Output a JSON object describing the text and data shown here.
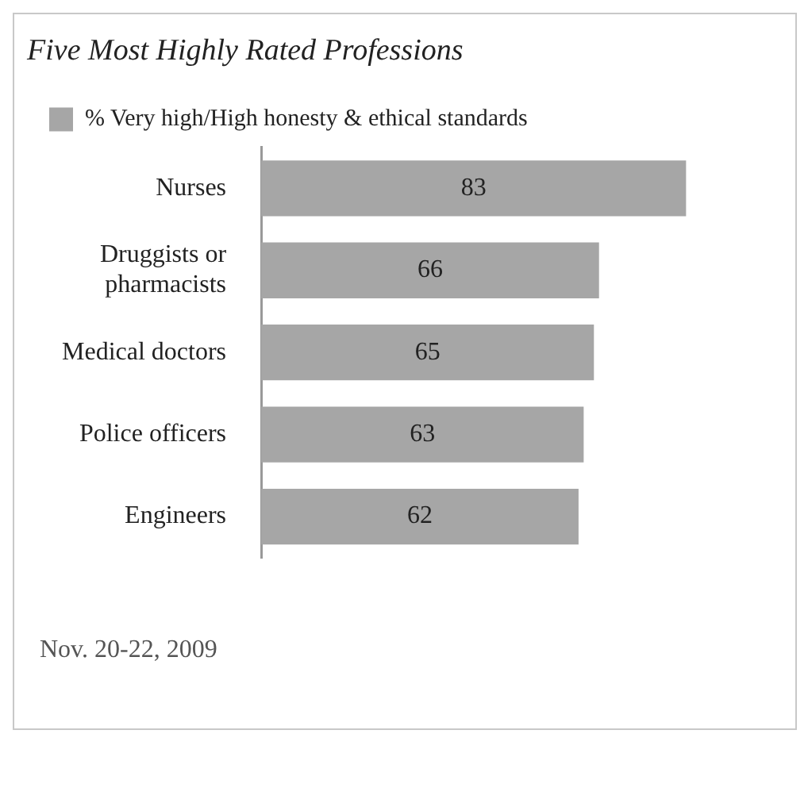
{
  "chart_data": {
    "type": "bar",
    "orientation": "horizontal",
    "title": "Five Most Highly Rated Professions",
    "categories": [
      "Nurses",
      "Druggists or pharmacists",
      "Medical doctors",
      "Police officers",
      "Engineers"
    ],
    "series": [
      {
        "name": "% Very high/High honesty & ethical standards",
        "color": "#a6a6a6",
        "values": [
          83,
          66,
          65,
          63,
          62
        ]
      }
    ],
    "tick_labels": "y",
    "data_labels": true,
    "legend": "top left",
    "grid": false,
    "annotations": [
      "Nov. 20-22, 2009"
    ]
  }
}
